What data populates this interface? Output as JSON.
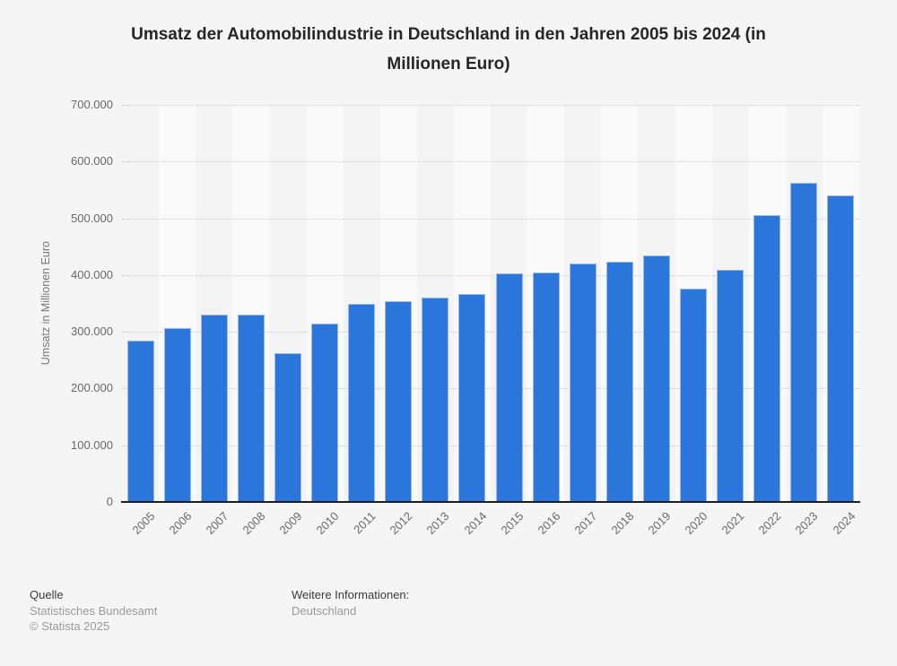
{
  "title_lines": [
    "Umsatz der Automobilindustrie in Deutschland in den Jahren 2005 bis 2024 (in",
    "Millionen Euro)"
  ],
  "chart_data": {
    "type": "bar",
    "title": "Umsatz der Automobilindustrie in Deutschland in den Jahren 2005 bis 2024 (in Millionen Euro)",
    "categories": [
      "2005",
      "2006",
      "2007",
      "2008",
      "2009",
      "2010",
      "2011",
      "2012",
      "2013",
      "2014",
      "2015",
      "2016",
      "2017",
      "2018",
      "2019",
      "2020",
      "2021",
      "2022",
      "2023",
      "2024"
    ],
    "values": [
      285000,
      306000,
      330000,
      330000,
      262000,
      314000,
      350000,
      354000,
      361000,
      367000,
      403000,
      404000,
      421000,
      424000,
      434000,
      376000,
      409000,
      505000,
      562000,
      541000
    ],
    "xlabel": "",
    "ylabel": "Umsatz in Millionen Euro",
    "ylim": [
      0,
      700000
    ],
    "ytick_interval": 100000,
    "ytick_labels_top_down": [
      "700.000",
      "600.000",
      "500.000",
      "400.000",
      "300.000",
      "200.000",
      "100.000",
      "0"
    ],
    "grid": "horizontal-dotted",
    "legend": "none",
    "bar_color": "#2b76db",
    "bar_edge_color": "#9bb9e9",
    "plot_band_colors": [
      "#f4f4f4",
      "#fafafa"
    ],
    "background_color": "#f5f5f5"
  },
  "footer": {
    "source_label": "Quelle",
    "source": "Statistisches Bundesamt",
    "copyright": "© Statista 2025",
    "info_label": "Weitere Informationen:",
    "info": "Deutschland"
  }
}
